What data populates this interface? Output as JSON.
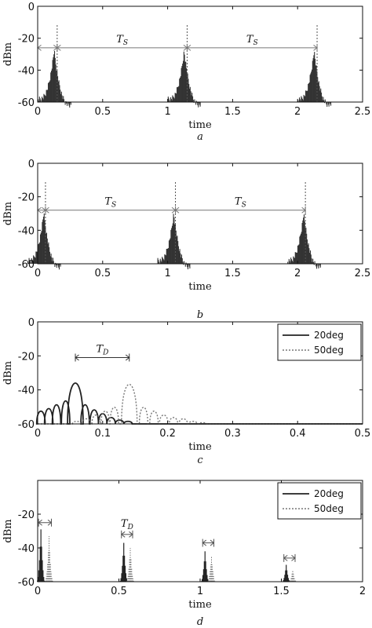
{
  "chart_data": [
    {
      "type": "line",
      "panel": "a",
      "caption": "a",
      "xlabel": "time",
      "ylabel": "dBm",
      "xlim": [
        0,
        2.5
      ],
      "ylim": [
        -60,
        0
      ],
      "xticks": [
        "0",
        "0.5",
        "1",
        "1.5",
        "2",
        "2.5"
      ],
      "yticks": [
        "0",
        "-20",
        "-40",
        "-60"
      ],
      "xtick_values": [
        0,
        0.5,
        1,
        1.5,
        2,
        2.5
      ],
      "ytick_values": [
        0,
        -20,
        -40,
        -60
      ],
      "colors": {
        "pulse": "#333333",
        "marker": "#555555",
        "arrow": "#777777"
      },
      "pulses": [
        {
          "t": 0.13,
          "peak": -28,
          "floor": -60
        },
        {
          "t": 1.13,
          "peak": -28,
          "floor": -60
        },
        {
          "t": 2.13,
          "peak": -28,
          "floor": -60
        }
      ],
      "markers": [
        0.15,
        1.15,
        2.15
      ],
      "arrow_y": -26,
      "arrows": [
        {
          "from": 0.0,
          "to": 0.15,
          "label": ""
        },
        {
          "from": 0.15,
          "to": 1.15,
          "label": "T",
          "sub": "S"
        },
        {
          "from": 1.15,
          "to": 2.15,
          "label": "T",
          "sub": "S"
        }
      ]
    },
    {
      "type": "line",
      "panel": "b",
      "caption": "b",
      "xlabel": "time",
      "ylabel": "dBm",
      "xlim": [
        0,
        2.5
      ],
      "ylim": [
        -60,
        0
      ],
      "xticks": [
        "0",
        "0.5",
        "1",
        "1.5",
        "2",
        "2.5"
      ],
      "yticks": [
        "0",
        "-20",
        "-40",
        "-60"
      ],
      "xtick_values": [
        0,
        0.5,
        1,
        1.5,
        2,
        2.5
      ],
      "ytick_values": [
        0,
        -20,
        -40,
        -60
      ],
      "colors": {
        "pulse": "#333333",
        "marker": "#555555",
        "arrow": "#777777"
      },
      "pulses": [
        {
          "t": 0.05,
          "peak": -30,
          "floor": -60
        },
        {
          "t": 1.05,
          "peak": -30,
          "floor": -60
        },
        {
          "t": 2.05,
          "peak": -30,
          "floor": -60
        }
      ],
      "markers": [
        0.06,
        1.06,
        2.06
      ],
      "arrow_y": -28,
      "arrows": [
        {
          "from": 0.0,
          "to": 0.06,
          "label": ""
        },
        {
          "from": 0.06,
          "to": 1.06,
          "label": "T",
          "sub": "S"
        },
        {
          "from": 1.06,
          "to": 2.06,
          "label": "T",
          "sub": "S"
        }
      ]
    },
    {
      "type": "line",
      "panel": "c",
      "caption": "c",
      "xlabel": "time",
      "ylabel": "dBm",
      "xlim": [
        0,
        0.5
      ],
      "ylim": [
        -60,
        0
      ],
      "xticks": [
        "0",
        "0.1",
        "0.2",
        "0.3",
        "0.4",
        "0.5"
      ],
      "yticks": [
        "0",
        "-20",
        "-40",
        "-60"
      ],
      "xtick_values": [
        0,
        0.1,
        0.2,
        0.3,
        0.4,
        0.5
      ],
      "ytick_values": [
        0,
        -20,
        -40,
        -60
      ],
      "legend": {
        "position": "top-right",
        "entries": [
          "20deg",
          "50deg"
        ]
      },
      "series": [
        {
          "name": "20deg",
          "style": "solid",
          "color": "#222222",
          "lobes": [
            {
              "t": 0.005,
              "peak": -50
            },
            {
              "t": 0.017,
              "peak": -48
            },
            {
              "t": 0.029,
              "peak": -45
            },
            {
              "t": 0.043,
              "peak": -42
            },
            {
              "t": 0.058,
              "peak": -28
            },
            {
              "t": 0.073,
              "peak": -45
            },
            {
              "t": 0.087,
              "peak": -49
            },
            {
              "t": 0.1,
              "peak": -52
            },
            {
              "t": 0.113,
              "peak": -55
            },
            {
              "t": 0.126,
              "peak": -57
            },
            {
              "t": 0.139,
              "peak": -58
            }
          ]
        },
        {
          "name": "50deg",
          "style": "dotted",
          "color": "#777777",
          "lobes": [
            {
              "t": 0.06,
              "peak": -58
            },
            {
              "t": 0.075,
              "peak": -56
            },
            {
              "t": 0.09,
              "peak": -53
            },
            {
              "t": 0.104,
              "peak": -50
            },
            {
              "t": 0.118,
              "peak": -47
            },
            {
              "t": 0.141,
              "peak": -29
            },
            {
              "t": 0.163,
              "peak": -47
            },
            {
              "t": 0.179,
              "peak": -50
            },
            {
              "t": 0.194,
              "peak": -53
            },
            {
              "t": 0.209,
              "peak": -55
            },
            {
              "t": 0.224,
              "peak": -56
            },
            {
              "t": 0.239,
              "peak": -58
            },
            {
              "t": 0.254,
              "peak": -59
            }
          ]
        }
      ],
      "arrow": {
        "from": 0.058,
        "to": 0.141,
        "y": -21,
        "label": "T",
        "sub": "D"
      }
    },
    {
      "type": "line",
      "panel": "d",
      "caption": "d",
      "xlabel": "time",
      "ylabel": "dBm",
      "xlim": [
        0,
        2
      ],
      "ylim": [
        -60,
        0
      ],
      "xticks": [
        "0",
        "0.5",
        "1",
        "1.5",
        "2"
      ],
      "yticks": [
        "-20",
        "-40",
        "-60"
      ],
      "xtick_values": [
        0,
        0.5,
        1,
        1.5,
        2
      ],
      "ytick_values": [
        -20,
        -40,
        -60
      ],
      "legend": {
        "position": "top-right",
        "entries": [
          "20deg",
          "50deg"
        ]
      },
      "series": [
        {
          "name": "20deg",
          "style": "solid",
          "color": "#222222",
          "pulses": [
            {
              "t": 0.02,
              "peak": -29
            },
            {
              "t": 0.53,
              "peak": -37
            },
            {
              "t": 1.03,
              "peak": -42
            },
            {
              "t": 1.53,
              "peak": -50
            }
          ]
        },
        {
          "name": "50deg",
          "style": "dotted",
          "color": "#777777",
          "pulses": [
            {
              "t": 0.07,
              "peak": -33
            },
            {
              "t": 0.57,
              "peak": -40
            },
            {
              "t": 1.07,
              "peak": -45
            },
            {
              "t": 1.57,
              "peak": -53
            }
          ]
        }
      ],
      "arrows": [
        {
          "from": 0.02,
          "to": 0.07,
          "y": -25
        },
        {
          "from": 0.53,
          "to": 0.57,
          "y": -32,
          "label": "T",
          "sub": "D"
        },
        {
          "from": 1.03,
          "to": 1.07,
          "y": -37
        },
        {
          "from": 1.53,
          "to": 1.57,
          "y": -46
        }
      ]
    }
  ]
}
